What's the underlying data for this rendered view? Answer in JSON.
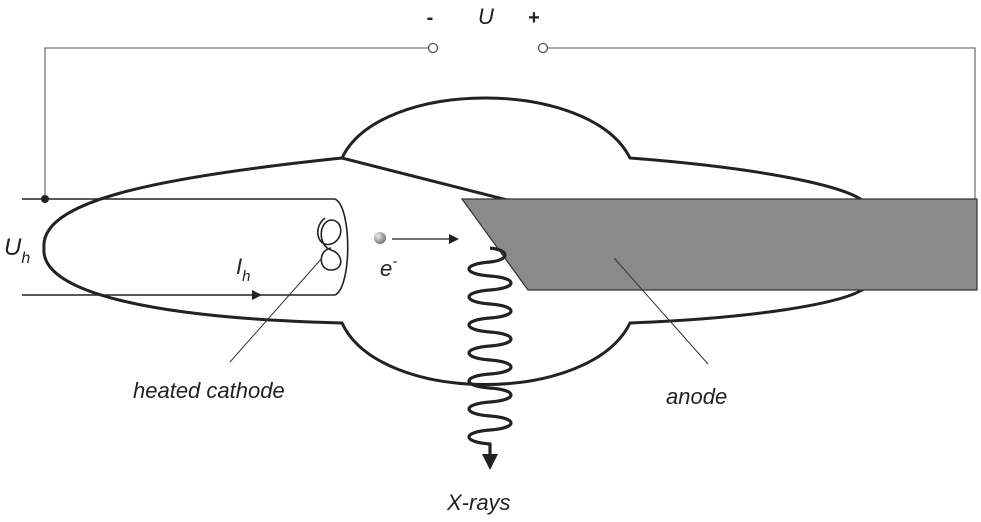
{
  "voltage": {
    "minus": "-",
    "symbol": "U",
    "plus": "+"
  },
  "heater_voltage": {
    "symbol": "U",
    "subscript": "h"
  },
  "heater_current": {
    "symbol": "I",
    "subscript": "h"
  },
  "electron": {
    "symbol": "e",
    "superscript": "-"
  },
  "labels": {
    "cathode": "heated cathode",
    "anode": "anode",
    "xrays": "X-rays"
  },
  "colors": {
    "line": "#222222",
    "wire": "#777777",
    "anode_fill": "#8a8a8a",
    "electron": "#888888"
  }
}
